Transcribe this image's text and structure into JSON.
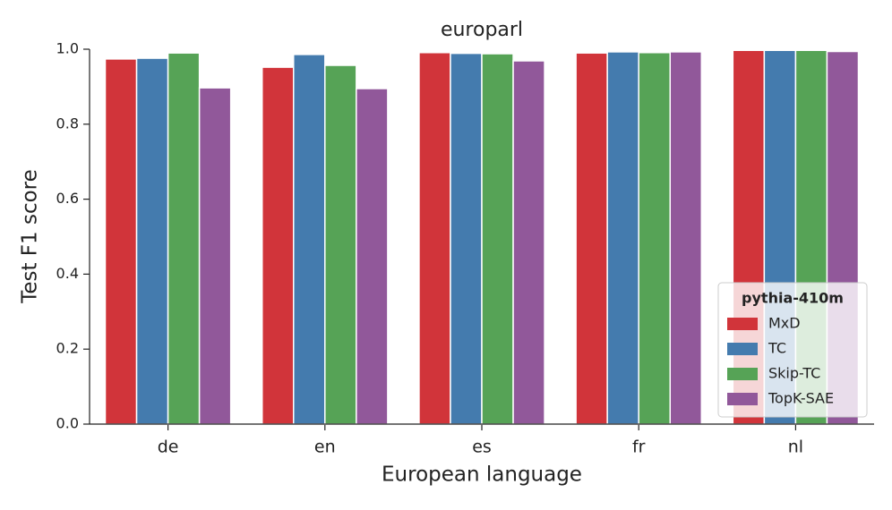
{
  "chart_data": {
    "type": "bar",
    "title": "europarl",
    "xlabel": "European language",
    "ylabel": "Test F1 score",
    "categories": [
      "de",
      "en",
      "es",
      "fr",
      "nl"
    ],
    "series": [
      {
        "name": "MxD",
        "color": "#d1343a",
        "values": [
          0.974,
          0.952,
          0.991,
          0.99,
          0.997
        ]
      },
      {
        "name": "TC",
        "color": "#447bae",
        "values": [
          0.976,
          0.986,
          0.989,
          0.993,
          0.997
        ]
      },
      {
        "name": "Skip-TC",
        "color": "#56a356",
        "values": [
          0.99,
          0.957,
          0.988,
          0.991,
          0.997
        ]
      },
      {
        "name": "TopK-SAE",
        "color": "#91589a",
        "values": [
          0.897,
          0.895,
          0.969,
          0.993,
          0.994
        ]
      }
    ],
    "ylim": [
      0,
      1.0
    ],
    "yticks": [
      {
        "value": 0,
        "label": "0.0"
      },
      0.2,
      0.4,
      0.6,
      0.8,
      {
        "value": 1.0,
        "label": "1.0"
      }
    ],
    "legend_title": "pythia-410m",
    "legend_position": "lower right",
    "grid": false
  }
}
